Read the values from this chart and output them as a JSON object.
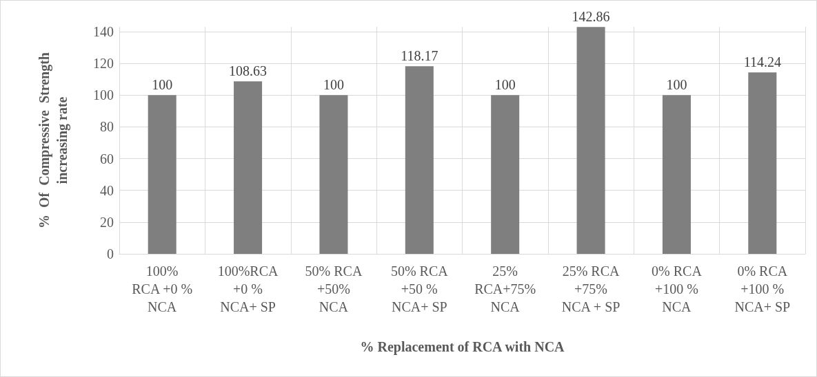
{
  "chart_data": {
    "type": "bar",
    "xlabel": "% Replacement of RCA with NCA",
    "ylabel": "%  Of  Compressive  Strength\nincreasing rate",
    "categories": [
      "100%\nRCA +0 %\nNCA",
      "100%RCA\n+0 %\nNCA+ SP",
      "50% RCA\n+50%\nNCA",
      "50% RCA\n+50 %\nNCA+ SP",
      "25%\nRCA+75%\nNCA",
      "25% RCA\n+75%\nNCA + SP",
      "0% RCA\n+100 %\nNCA",
      "0% RCA\n+100 %\nNCA+ SP"
    ],
    "values": [
      100,
      108.63,
      100,
      118.17,
      100,
      142.86,
      100,
      114.24
    ],
    "color": "#7f7f7f",
    "ylim": [
      0,
      143
    ],
    "yticks": [
      0,
      20,
      40,
      60,
      80,
      100,
      120,
      140
    ],
    "grid": true,
    "data_labels": true
  }
}
